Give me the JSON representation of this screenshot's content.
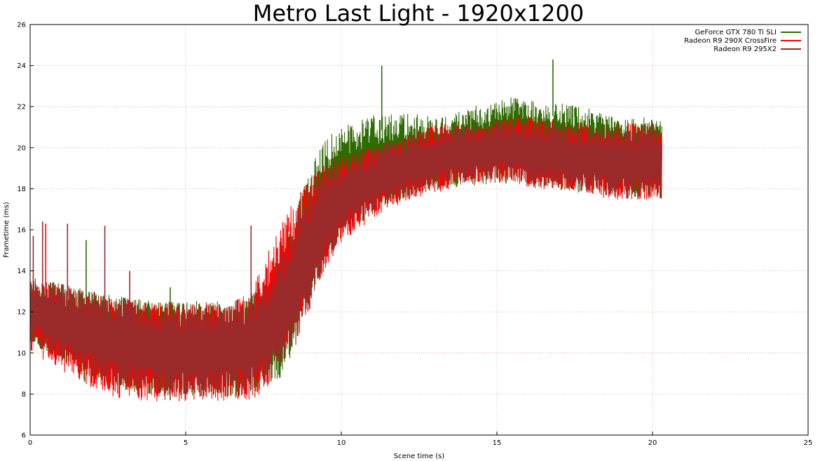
{
  "chart_data": {
    "type": "line",
    "title": "Metro Last Light - 1920x1200",
    "xlabel": "Scene time (s)",
    "ylabel": "Frametime (ms)",
    "xlim": [
      0,
      25
    ],
    "ylim": [
      6,
      26
    ],
    "xticks": [
      0,
      5,
      10,
      15,
      20,
      25
    ],
    "yticks": [
      6,
      8,
      10,
      12,
      14,
      16,
      18,
      20,
      22,
      24,
      26
    ],
    "grid": true,
    "legend_position": "top-right",
    "series": [
      {
        "name": "GeForce GTX 780 Ti SLI",
        "color": "#2e6b00",
        "envelope": {
          "x": [
            0.0,
            0.5,
            1.0,
            1.5,
            2.0,
            2.5,
            3.0,
            3.5,
            4.0,
            4.5,
            5.0,
            5.5,
            6.0,
            6.5,
            7.0,
            7.5,
            8.0,
            8.5,
            9.0,
            9.5,
            10.0,
            10.5,
            11.0,
            11.5,
            12.0,
            12.5,
            13.0,
            13.5,
            14.0,
            14.5,
            15.0,
            15.5,
            16.0,
            16.5,
            17.0,
            17.5,
            18.0,
            18.5,
            19.0,
            19.5,
            20.0,
            20.3
          ],
          "upper": [
            13.2,
            13.0,
            12.8,
            12.5,
            12.3,
            12.2,
            12.0,
            11.9,
            11.8,
            11.8,
            11.8,
            11.8,
            11.8,
            11.8,
            11.9,
            12.5,
            14.0,
            16.0,
            18.0,
            19.5,
            20.3,
            20.6,
            20.8,
            20.9,
            21.0,
            21.0,
            20.9,
            21.0,
            21.3,
            21.5,
            21.6,
            21.9,
            21.8,
            21.6,
            21.5,
            21.5,
            21.3,
            21.0,
            20.9,
            20.9,
            20.9,
            20.7
          ],
          "lower": [
            11.0,
            10.6,
            10.2,
            9.8,
            9.4,
            9.1,
            8.9,
            8.7,
            8.6,
            8.6,
            8.6,
            8.6,
            8.6,
            8.6,
            8.7,
            9.0,
            9.6,
            11.2,
            13.5,
            15.5,
            16.5,
            17.0,
            17.4,
            17.8,
            18.1,
            18.3,
            18.5,
            18.6,
            18.7,
            18.8,
            18.9,
            18.9,
            18.8,
            18.7,
            18.6,
            18.5,
            18.4,
            18.3,
            18.2,
            18.2,
            18.2,
            18.1
          ]
        },
        "spikes": [
          [
            1.8,
            15.5
          ],
          [
            1.75,
            8.6
          ],
          [
            2.2,
            8.8
          ],
          [
            4.5,
            13.2
          ],
          [
            4.5,
            7.7
          ],
          [
            11.3,
            24.0
          ],
          [
            11.3,
            20.0
          ],
          [
            12.0,
            21.4
          ],
          [
            14.0,
            21.6
          ],
          [
            15.6,
            22.4
          ],
          [
            16.8,
            24.3
          ],
          [
            17.5,
            21.9
          ]
        ]
      },
      {
        "name": "Radeon R9 290X CrossFire",
        "color": "#ff0000",
        "envelope": {
          "x": [
            0.0,
            0.5,
            1.0,
            1.5,
            2.0,
            2.5,
            3.0,
            3.5,
            4.0,
            4.5,
            5.0,
            5.5,
            6.0,
            6.5,
            7.0,
            7.5,
            8.0,
            8.5,
            9.0,
            9.5,
            10.0,
            10.5,
            11.0,
            11.5,
            12.0,
            12.5,
            13.0,
            13.5,
            14.0,
            14.5,
            15.0,
            15.5,
            16.0,
            16.5,
            17.0,
            17.5,
            18.0,
            18.5,
            19.0,
            19.5,
            20.0,
            20.3
          ],
          "upper": [
            13.0,
            12.8,
            12.6,
            12.4,
            12.2,
            12.0,
            11.9,
            11.8,
            11.7,
            11.7,
            11.7,
            11.7,
            11.8,
            11.9,
            12.2,
            13.5,
            15.0,
            16.5,
            17.8,
            18.6,
            19.0,
            19.3,
            19.5,
            19.8,
            20.1,
            20.4,
            20.6,
            20.7,
            20.7,
            20.8,
            20.9,
            21.0,
            21.0,
            20.9,
            20.8,
            20.7,
            20.6,
            20.6,
            20.6,
            20.6,
            20.7,
            20.6
          ],
          "lower": [
            10.6,
            10.2,
            9.8,
            9.4,
            9.0,
            8.7,
            8.5,
            8.4,
            8.4,
            8.4,
            8.4,
            8.4,
            8.4,
            8.4,
            8.5,
            9.0,
            10.5,
            12.0,
            13.5,
            15.0,
            16.0,
            16.6,
            17.0,
            17.5,
            17.8,
            18.1,
            18.3,
            18.5,
            18.6,
            18.7,
            18.8,
            18.8,
            18.6,
            18.5,
            18.4,
            18.3,
            18.2,
            18.1,
            18.0,
            18.0,
            18.1,
            18.0
          ]
        },
        "spikes": [
          [
            3.5,
            8.2
          ],
          [
            5.0,
            8.1
          ],
          [
            5.5,
            7.9
          ],
          [
            7.3,
            8.1
          ],
          [
            8.3,
            16.6
          ],
          [
            0.5,
            16.3
          ]
        ]
      },
      {
        "name": "Radeon R9 295X2",
        "color": "#9b2a2a",
        "envelope": {
          "x": [
            0.0,
            0.5,
            1.0,
            1.5,
            2.0,
            2.5,
            3.0,
            3.5,
            4.0,
            4.5,
            5.0,
            5.5,
            6.0,
            6.5,
            7.0,
            7.5,
            8.0,
            8.5,
            9.0,
            9.5,
            10.0,
            10.5,
            11.0,
            11.5,
            12.0,
            12.5,
            13.0,
            13.5,
            14.0,
            14.5,
            15.0,
            15.5,
            16.0,
            16.5,
            17.0,
            17.5,
            18.0,
            18.5,
            19.0,
            19.5,
            20.0,
            20.3
          ],
          "upper": [
            13.2,
            13.0,
            12.8,
            12.6,
            12.4,
            12.2,
            12.0,
            11.9,
            11.8,
            11.7,
            11.7,
            11.7,
            11.7,
            11.8,
            12.0,
            12.6,
            13.8,
            15.5,
            17.2,
            18.2,
            18.8,
            19.2,
            19.5,
            19.8,
            20.1,
            20.4,
            20.5,
            20.6,
            20.7,
            20.8,
            20.9,
            21.0,
            20.9,
            20.8,
            20.7,
            20.6,
            20.5,
            20.5,
            20.5,
            20.5,
            20.6,
            20.5
          ],
          "lower": [
            11.0,
            10.6,
            10.2,
            9.8,
            9.4,
            9.1,
            8.9,
            8.7,
            8.6,
            8.5,
            8.5,
            8.5,
            8.5,
            8.5,
            8.6,
            9.0,
            10.0,
            11.2,
            13.0,
            15.0,
            16.2,
            16.8,
            17.2,
            17.7,
            18.0,
            18.3,
            18.5,
            18.6,
            18.7,
            18.8,
            18.9,
            18.9,
            18.7,
            18.6,
            18.5,
            18.4,
            18.3,
            18.2,
            18.1,
            18.0,
            18.1,
            18.0
          ]
        },
        "spikes": [
          [
            0.4,
            16.4
          ],
          [
            1.2,
            16.3
          ],
          [
            2.4,
            16.2
          ],
          [
            3.2,
            14.0
          ],
          [
            7.1,
            16.2
          ],
          [
            0.1,
            15.7
          ]
        ]
      }
    ]
  }
}
